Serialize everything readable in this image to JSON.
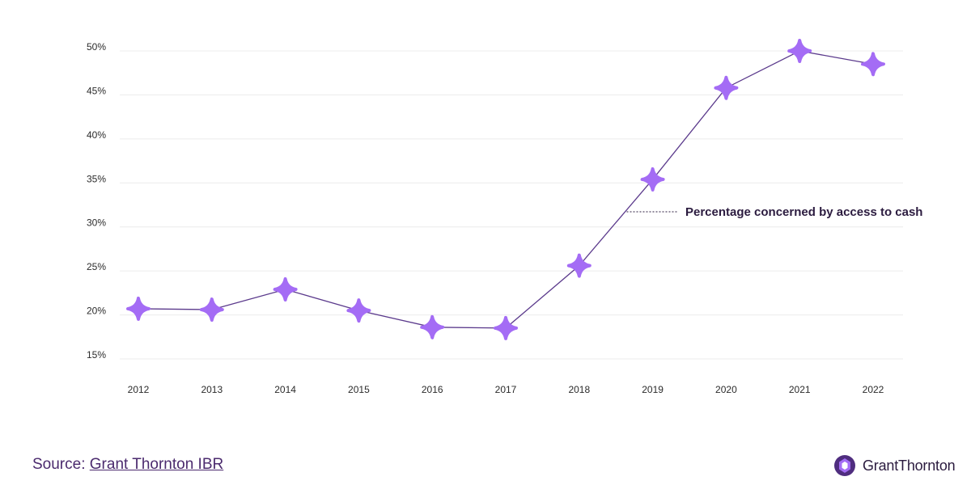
{
  "chart_data": {
    "type": "line",
    "x": [
      "2012",
      "2013",
      "2014",
      "2015",
      "2016",
      "2017",
      "2018",
      "2019",
      "2020",
      "2021",
      "2022"
    ],
    "series": [
      {
        "name": "Percentage concerned by access to cash",
        "values": [
          20.7,
          20.6,
          22.9,
          20.5,
          18.6,
          18.5,
          25.6,
          35.4,
          45.8,
          50.0,
          48.5
        ]
      }
    ],
    "ylim": [
      15,
      50
    ],
    "yticks": [
      15,
      20,
      25,
      30,
      35,
      40,
      45,
      50
    ],
    "ytick_labels": [
      "15%",
      "20%",
      "25%",
      "30%",
      "35%",
      "40%",
      "45%",
      "50%"
    ],
    "xlabel": "",
    "ylabel": "",
    "grid": true,
    "colors": {
      "line": "#5b3a8c",
      "marker": "#a46cf5",
      "grid": "#ececec",
      "annotation": "#2b1b3f"
    }
  },
  "footer": {
    "source_prefix": "Source: ",
    "source_link": "Grant Thornton IBR",
    "brand": "GrantThornton"
  }
}
